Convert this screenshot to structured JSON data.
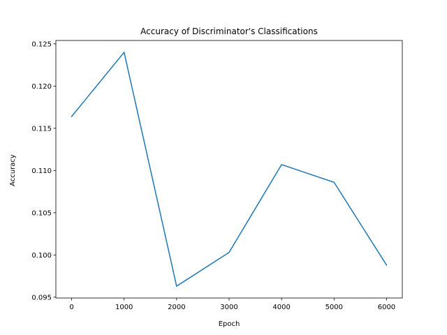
{
  "chart_data": {
    "type": "line",
    "title": "Accuracy of Discriminator's Classifications",
    "xlabel": "Epoch",
    "ylabel": "Accuracy",
    "x": [
      0,
      1000,
      2000,
      3000,
      4000,
      5000,
      6000
    ],
    "series": [
      {
        "values": [
          0.1164,
          0.124,
          0.0963,
          0.1003,
          0.1107,
          0.1086,
          0.0988
        ]
      }
    ],
    "xlim": [
      -300,
      6300
    ],
    "ylim": [
      0.0949,
      0.1254
    ],
    "xticks": [
      0,
      1000,
      2000,
      3000,
      4000,
      5000,
      6000
    ],
    "xtick_labels": [
      "0",
      "1000",
      "2000",
      "3000",
      "4000",
      "5000",
      "6000"
    ],
    "yticks": [
      0.095,
      0.1,
      0.105,
      0.11,
      0.115,
      0.12,
      0.125
    ],
    "ytick_labels": [
      "0.095",
      "0.100",
      "0.105",
      "0.110",
      "0.115",
      "0.120",
      "0.125"
    ],
    "grid": false,
    "legend": false,
    "colors": {
      "series": "#1f77b4",
      "axes": "#000000"
    }
  }
}
